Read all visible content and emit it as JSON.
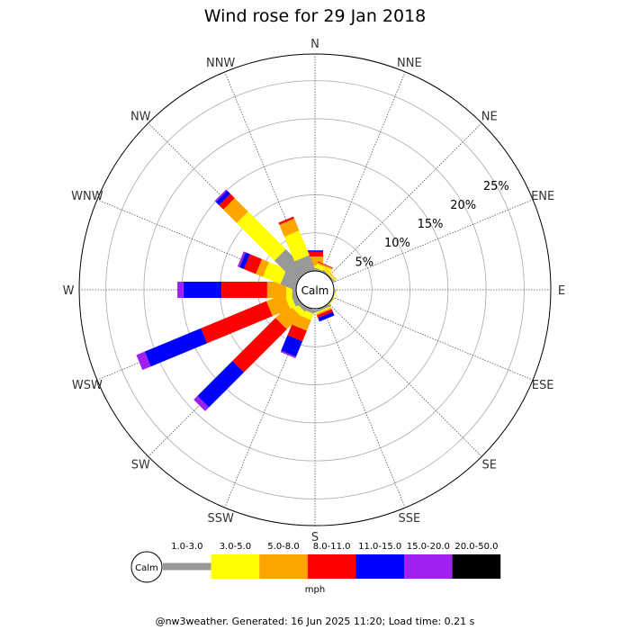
{
  "chart_data": {
    "type": "wind-rose",
    "title": "Wind rose for 29 Jan 2018",
    "directions": [
      "N",
      "NNE",
      "NE",
      "ENE",
      "E",
      "ESE",
      "SE",
      "SSE",
      "S",
      "SSW",
      "SW",
      "WSW",
      "W",
      "WNW",
      "NW",
      "NNW"
    ],
    "ring_labels": [
      "5%",
      "10%",
      "15%",
      "20%",
      "25%"
    ],
    "ring_values": [
      5,
      10,
      15,
      20,
      25
    ],
    "max_percent": 28.5,
    "calm_label": "Calm",
    "speed_unit": "mph",
    "speed_bins": [
      {
        "label": "1.0-3.0",
        "color": "#999999"
      },
      {
        "label": "3.0-5.0",
        "color": "#ffff00"
      },
      {
        "label": "5.0-8.0",
        "color": "#ffa500"
      },
      {
        "label": "8.0-11.0",
        "color": "#ff0000"
      },
      {
        "label": "11.0-15.0",
        "color": "#0000ff"
      },
      {
        "label": "15.0-20.0",
        "color": "#a020f0"
      },
      {
        "label": "20.0-50.0",
        "color": "#000000"
      }
    ],
    "frequencies": [
      [
        0.3,
        0.4,
        1.2,
        0.6,
        0.2,
        0,
        0
      ],
      [
        0.2,
        0.6,
        0.2,
        0.1,
        0,
        0,
        0
      ],
      [
        0.2,
        0.2,
        0.1,
        0,
        0,
        0,
        0
      ],
      [
        0,
        0,
        0,
        0,
        0,
        0,
        0
      ],
      [
        0,
        0,
        0,
        0,
        0,
        0,
        0
      ],
      [
        0.1,
        0.1,
        0,
        0,
        0,
        0,
        0
      ],
      [
        0.1,
        0.1,
        0,
        0,
        0,
        0,
        0
      ],
      [
        0.3,
        0.2,
        0.2,
        0.4,
        0.5,
        0,
        0
      ],
      [
        0,
        0,
        0,
        0,
        0,
        0,
        0
      ],
      [
        0.5,
        0.9,
        1.5,
        1.5,
        2.2,
        0.2,
        0
      ],
      [
        0.5,
        0.8,
        2.5,
        8.0,
        6.5,
        0.7,
        0
      ],
      [
        0.7,
        0.8,
        2.5,
        9.3,
        8.0,
        1.2,
        0
      ],
      [
        0.5,
        0.8,
        2.5,
        6.0,
        5.0,
        0.8,
        0
      ],
      [
        2.0,
        2.5,
        1.0,
        1.7,
        0.6,
        0.3,
        0
      ],
      [
        4.0,
        7.0,
        2.5,
        0.8,
        0.6,
        0.2,
        0
      ],
      [
        2.0,
        3.5,
        1.7,
        0.3,
        0,
        0,
        0
      ]
    ]
  },
  "footer": "@nw3weather. Generated: 16 Jun 2025 11:20; Load time: 0.21 s"
}
